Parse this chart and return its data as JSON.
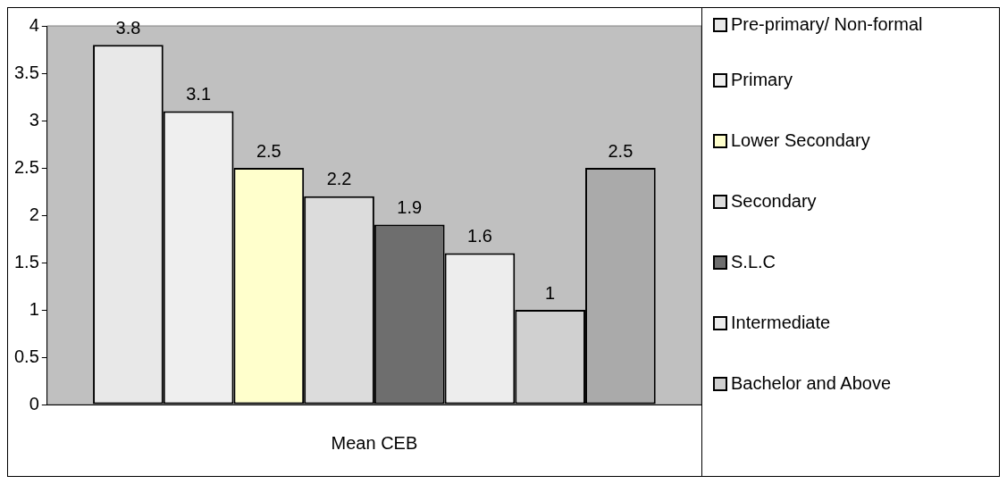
{
  "chart_data": {
    "type": "bar",
    "categories": [
      "Mean CEB"
    ],
    "series": [
      {
        "name": "Pre-primary/ Non-formal",
        "color": "#e8e8e8",
        "values": [
          3.8
        ]
      },
      {
        "name": "Primary",
        "color": "#efefef",
        "values": [
          3.1
        ]
      },
      {
        "name": "Lower Secondary",
        "color": "#ffffcc",
        "values": [
          2.5
        ]
      },
      {
        "name": "Secondary",
        "color": "#dcdcdc",
        "values": [
          2.2
        ]
      },
      {
        "name": "S.L.C",
        "color": "#6e6e6e",
        "values": [
          1.9
        ]
      },
      {
        "name": "Intermediate",
        "color": "#ededed",
        "values": [
          1.6
        ]
      },
      {
        "name": "Bachelor and Above",
        "color": "#d0d0d0",
        "values": [
          1
        ]
      },
      {
        "color": "#aaaaaa",
        "values": [
          2.5
        ]
      }
    ],
    "ylim": [
      0,
      4
    ],
    "yticks": [
      0,
      0.5,
      1,
      1.5,
      2,
      2.5,
      3,
      3.5,
      4
    ],
    "grid": false,
    "legend": "right",
    "data_labels": true
  }
}
